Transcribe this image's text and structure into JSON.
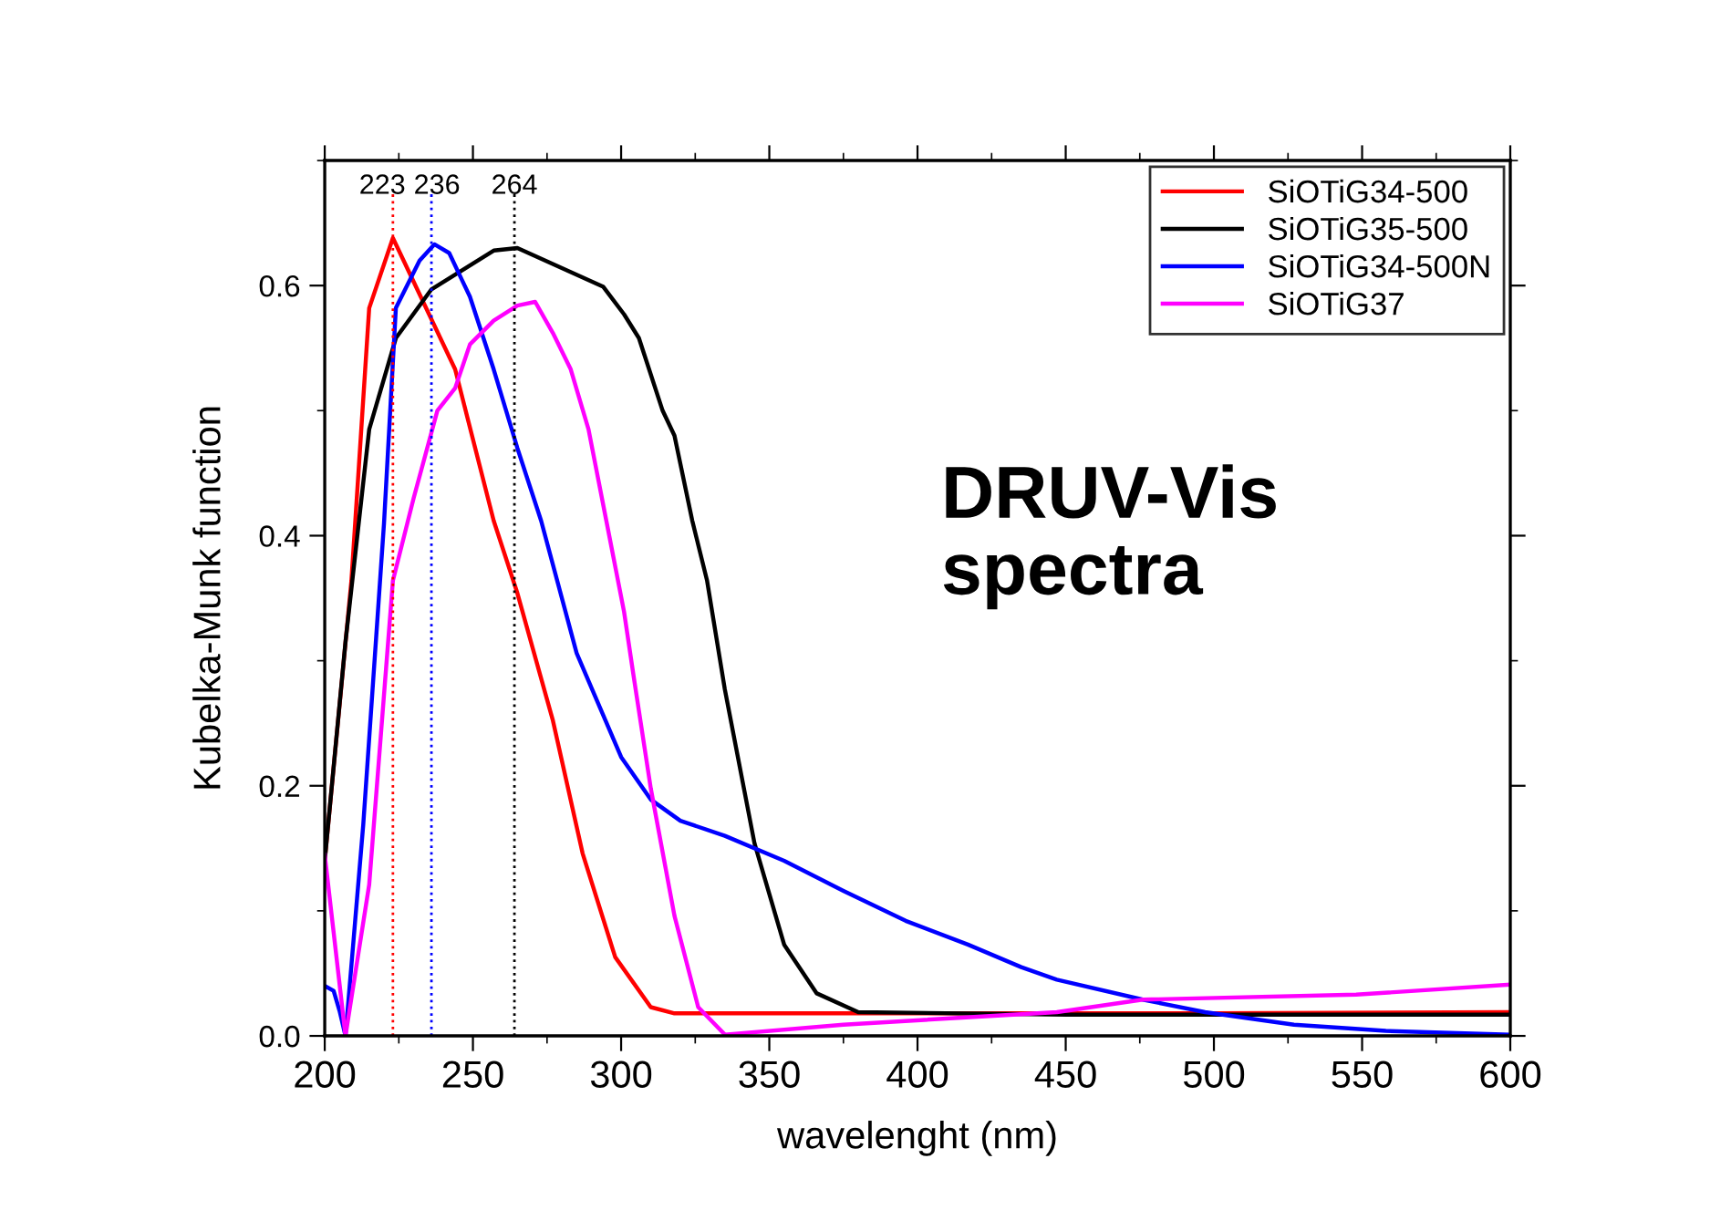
{
  "chart_data": {
    "type": "line",
    "xlabel": "wavelenght (nm)",
    "ylabel": "Kubelka-Munk function",
    "xlim": [
      200,
      600
    ],
    "ylim": [
      0,
      0.7
    ],
    "xticks": [
      200,
      250,
      300,
      350,
      400,
      450,
      500,
      550,
      600
    ],
    "yticks": [
      {
        "value": 0,
        "label": "0.0"
      },
      0.2,
      0.4,
      0.6
    ],
    "grid": false,
    "legend": "top right",
    "line_style": "solid",
    "marker": "none",
    "annotations": [
      "DRUV-Vis\nspectra"
    ],
    "ref_lines": [
      {
        "axis": "x",
        "value": 223,
        "label": "223",
        "color": "#ff0000",
        "line_style": "dotted"
      },
      {
        "axis": "x",
        "value": 236,
        "label": "236",
        "color": "#0000ff",
        "line_style": "dotted"
      },
      {
        "axis": "x",
        "value": 264,
        "label": "264",
        "color": "#000000",
        "line_style": "dotted"
      }
    ],
    "series": [
      {
        "name": "SiOTiG34-500",
        "color": "#ff0000",
        "x": [
          200,
          209,
          215,
          223,
          244,
          257,
          265,
          277,
          287,
          298,
          310,
          318,
          400,
          500,
          600
        ],
        "values": [
          0.14,
          0.364,
          0.582,
          0.638,
          0.533,
          0.412,
          0.354,
          0.252,
          0.146,
          0.063,
          0.023,
          0.018,
          0.018,
          0.018,
          0.019
        ]
      },
      {
        "name": "SiOTiG35-500",
        "color": "#000000",
        "x": [
          200,
          207,
          215,
          224,
          236,
          257,
          265,
          294,
          301,
          306,
          314,
          318,
          324,
          329,
          335,
          345,
          355,
          366,
          380,
          450,
          600
        ],
        "values": [
          0.14,
          0.315,
          0.485,
          0.558,
          0.597,
          0.628,
          0.63,
          0.599,
          0.577,
          0.558,
          0.5,
          0.48,
          0.412,
          0.364,
          0.277,
          0.154,
          0.073,
          0.034,
          0.019,
          0.017,
          0.017
        ]
      },
      {
        "name": "SiOTiG34-500N",
        "color": "#0000ff",
        "x": [
          200,
          203,
          205,
          207,
          213,
          220,
          224,
          232,
          237,
          242,
          249,
          257,
          265,
          273,
          285,
          300,
          310,
          320,
          335,
          355,
          375,
          396,
          417,
          435,
          447,
          476,
          497,
          527,
          558,
          600
        ],
        "values": [
          0.04,
          0.036,
          0.02,
          0.0,
          0.169,
          0.41,
          0.582,
          0.62,
          0.633,
          0.626,
          0.591,
          0.533,
          0.47,
          0.412,
          0.306,
          0.223,
          0.189,
          0.172,
          0.16,
          0.14,
          0.116,
          0.092,
          0.073,
          0.055,
          0.045,
          0.029,
          0.019,
          0.009,
          0.004,
          0.001
        ]
      },
      {
        "name": "SiOTiG37",
        "color": "#ff00ff",
        "x": [
          200,
          207,
          215,
          223,
          230,
          238,
          244,
          249,
          257,
          265,
          271,
          277,
          283,
          289,
          295,
          301,
          304,
          310,
          318,
          326,
          335,
          375,
          447,
          476,
          548,
          600
        ],
        "values": [
          0.145,
          0.0,
          0.121,
          0.364,
          0.43,
          0.5,
          0.518,
          0.553,
          0.572,
          0.584,
          0.587,
          0.562,
          0.533,
          0.485,
          0.412,
          0.339,
          0.291,
          0.198,
          0.096,
          0.023,
          0.001,
          0.009,
          0.019,
          0.029,
          0.033,
          0.041
        ]
      }
    ]
  }
}
